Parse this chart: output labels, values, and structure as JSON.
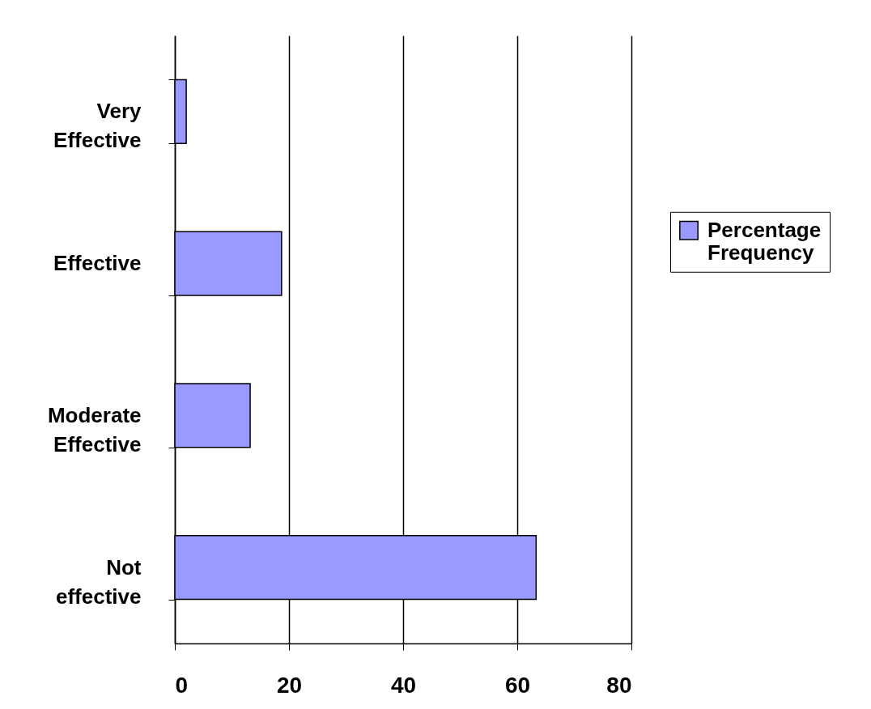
{
  "chart_data": {
    "type": "bar",
    "orientation": "horizontal",
    "categories": [
      "Very Effective",
      "Effective",
      "Moderate Effective",
      "Not effective"
    ],
    "series": [
      {
        "name": "Percentage Frequency",
        "color": "#9999ff",
        "values": [
          2,
          18.7,
          13.2,
          63.3
        ]
      }
    ],
    "xlim": [
      0,
      80
    ],
    "xticks": [
      0,
      20,
      40,
      60,
      80
    ],
    "grid": "x",
    "legend": "right"
  }
}
